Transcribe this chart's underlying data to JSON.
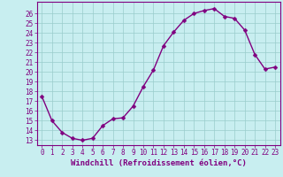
{
  "x": [
    0,
    1,
    2,
    3,
    4,
    5,
    6,
    7,
    8,
    9,
    10,
    11,
    12,
    13,
    14,
    15,
    16,
    17,
    18,
    19,
    20,
    21,
    22,
    23
  ],
  "y": [
    17.5,
    15.0,
    13.8,
    13.2,
    13.0,
    13.2,
    14.5,
    15.2,
    15.3,
    16.5,
    18.5,
    20.2,
    22.7,
    24.1,
    25.3,
    26.0,
    26.3,
    26.5,
    25.7,
    25.5,
    24.3,
    21.8,
    20.3,
    20.5
  ],
  "xlim": [
    -0.5,
    23.5
  ],
  "ylim": [
    12.5,
    27.2
  ],
  "yticks": [
    13,
    14,
    15,
    16,
    17,
    18,
    19,
    20,
    21,
    22,
    23,
    24,
    25,
    26
  ],
  "xticks": [
    0,
    1,
    2,
    3,
    4,
    5,
    6,
    7,
    8,
    9,
    10,
    11,
    12,
    13,
    14,
    15,
    16,
    17,
    18,
    19,
    20,
    21,
    22,
    23
  ],
  "xlabel": "Windchill (Refroidissement éolien,°C)",
  "line_color": "#800080",
  "marker_color": "#800080",
  "bg_color": "#c8eef0",
  "grid_color": "#99cccc",
  "spine_color": "#800080",
  "tick_color": "#800080",
  "label_color": "#800080",
  "tick_fontsize": 5.5,
  "xlabel_fontsize": 6.5,
  "line_width": 1.0,
  "marker_size": 2.5
}
